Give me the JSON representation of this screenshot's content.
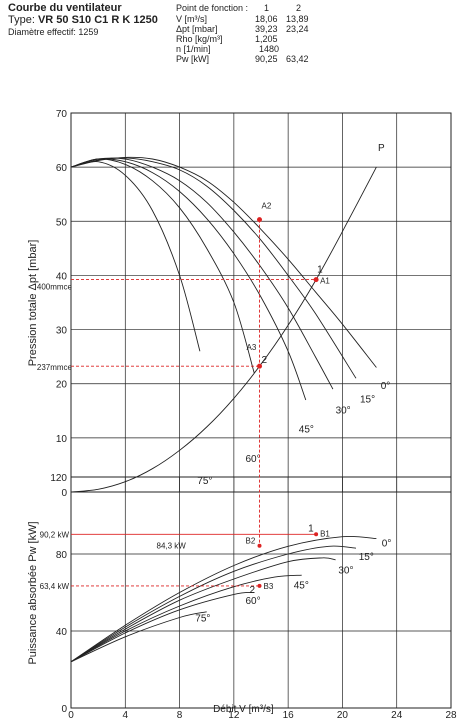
{
  "header": {
    "title": "Courbe du ventilateur",
    "type_prefix": "Type:",
    "type_value": "VR 50 S10 C1 R K 1250",
    "diameter": "Diamètre effectif: 1259"
  },
  "function_table": {
    "title": "Point de fonction :",
    "columns": [
      "1",
      "2"
    ],
    "rows": [
      {
        "label": "V [m³/s]",
        "values": [
          "18,06",
          "13,89"
        ]
      },
      {
        "label": "Δpt [mbar]",
        "values": [
          "39,23",
          "23,24"
        ]
      },
      {
        "label": "Rho [kg/m³]",
        "values": [
          "1,205",
          ""
        ]
      },
      {
        "label": "n [1/min]",
        "values": [
          "1480",
          ""
        ]
      },
      {
        "label": "Pw [kW]",
        "values": [
          "90,25",
          "63,42"
        ]
      }
    ]
  },
  "colors": {
    "curve": "#222222",
    "grid": "#222222",
    "marker": "#dd2222",
    "ref_line": "#dd2222"
  },
  "chart_data": [
    {
      "type": "line",
      "title": "",
      "ylabel": "Pression totale Δpt [mbar]",
      "xlim": [
        0,
        28
      ],
      "ylim": [
        0,
        70
      ],
      "xticks": [
        0,
        4,
        8,
        12,
        16,
        20,
        24,
        28
      ],
      "yticks": [
        0,
        10,
        20,
        30,
        40,
        50,
        60,
        70
      ],
      "grid": true,
      "series": [
        {
          "name": "0°",
          "x": [
            0,
            2,
            4,
            6,
            8,
            10,
            12,
            14,
            16,
            18,
            20,
            22.5
          ],
          "y": [
            60,
            61.2,
            61.8,
            61.5,
            60,
            57.5,
            53.5,
            48.5,
            43,
            37,
            31,
            23
          ]
        },
        {
          "name": "15°",
          "x": [
            0,
            2,
            4,
            6,
            8,
            10,
            12,
            14,
            16,
            18,
            21
          ],
          "y": [
            60,
            61.3,
            61.7,
            61,
            59.5,
            56.5,
            52,
            46.5,
            40,
            33,
            21
          ]
        },
        {
          "name": "30°",
          "x": [
            0,
            2,
            4,
            6,
            8,
            10,
            12,
            14,
            16,
            18,
            19.3
          ],
          "y": [
            60,
            61.5,
            61.5,
            60,
            57.5,
            53.5,
            48,
            41.5,
            34,
            25,
            19
          ]
        },
        {
          "name": "45°",
          "x": [
            0,
            2,
            4,
            6,
            8,
            10,
            12,
            14,
            16,
            17.3
          ],
          "y": [
            60,
            61.5,
            61,
            59,
            55.5,
            50.5,
            44,
            36,
            26,
            17
          ]
        },
        {
          "name": "60°",
          "x": [
            0,
            2,
            4,
            6,
            8,
            10,
            12,
            13.5
          ],
          "y": [
            60,
            61.5,
            60.5,
            57.5,
            52.5,
            45,
            35,
            22
          ]
        },
        {
          "name": "75°",
          "x": [
            0,
            2,
            4,
            6,
            8,
            9.5
          ],
          "y": [
            60,
            61,
            58.5,
            52,
            40,
            26
          ]
        },
        {
          "name": "P",
          "x": [
            0,
            2,
            4,
            6,
            8,
            10,
            12,
            13.89,
            16,
            18.06,
            20,
            22.5
          ],
          "y": [
            0,
            0.5,
            1.9,
            4.3,
            7.7,
            12,
            17.3,
            23.24,
            30.8,
            39.23,
            48.1,
            60
          ]
        }
      ],
      "curve_labels": [
        "0°",
        "15°",
        "30°",
        "45°",
        "60°",
        "75°",
        "P"
      ],
      "points": [
        {
          "label": "A1",
          "x": 18.06,
          "y": 39.23
        },
        {
          "label": "A2",
          "x": 13.89,
          "y": 50.3
        },
        {
          "label": "A3",
          "x": 13.89,
          "y": 23.24
        }
      ],
      "point_numbers": [
        "1",
        "2"
      ],
      "reference_labels": [
        "400mmce",
        "237mmce"
      ]
    },
    {
      "type": "line",
      "title": "",
      "xlabel": "Débit V [m³/s]",
      "ylabel": "Puissance absorbée Pw [kW]",
      "xlim": [
        0,
        28
      ],
      "ylim": [
        0,
        120
      ],
      "xticks": [
        0,
        4,
        8,
        12,
        16,
        20,
        24,
        28
      ],
      "yticks": [
        0,
        40,
        80,
        120
      ],
      "grid": true,
      "series": [
        {
          "name": "0°",
          "x": [
            0,
            4,
            8,
            12,
            16,
            20,
            22.5
          ],
          "y": [
            24,
            43,
            60,
            74,
            84,
            89,
            88
          ]
        },
        {
          "name": "15°",
          "x": [
            0,
            4,
            8,
            12,
            16,
            19,
            21
          ],
          "y": [
            24,
            42,
            58,
            71,
            80,
            84,
            83
          ]
        },
        {
          "name": "30°",
          "x": [
            0,
            4,
            8,
            12,
            16,
            18.5,
            19.5
          ],
          "y": [
            24,
            41,
            56,
            67,
            76,
            78,
            77
          ]
        },
        {
          "name": "45°",
          "x": [
            0,
            4,
            8,
            12,
            15,
            17
          ],
          "y": [
            24,
            40,
            53,
            63,
            68,
            69
          ]
        },
        {
          "name": "60°",
          "x": [
            0,
            4,
            8,
            12,
            13.5
          ],
          "y": [
            24,
            39,
            51,
            59,
            60
          ]
        },
        {
          "name": "75°",
          "x": [
            0,
            4,
            8,
            10
          ],
          "y": [
            24,
            37,
            47,
            50
          ]
        }
      ],
      "curve_labels": [
        "0°",
        "15°",
        "30°",
        "45°",
        "60°",
        "75°"
      ],
      "points": [
        {
          "label": "B1",
          "x": 18.06,
          "y": 90.25
        },
        {
          "label": "B2",
          "x": 13.89,
          "y": 84.3
        },
        {
          "label": "B3",
          "x": 13.89,
          "y": 63.42
        }
      ],
      "point_numbers": [
        "1",
        "2"
      ],
      "reference_labels": [
        "90,2 kW",
        "84,3 kW",
        "63,4 kW"
      ]
    }
  ]
}
